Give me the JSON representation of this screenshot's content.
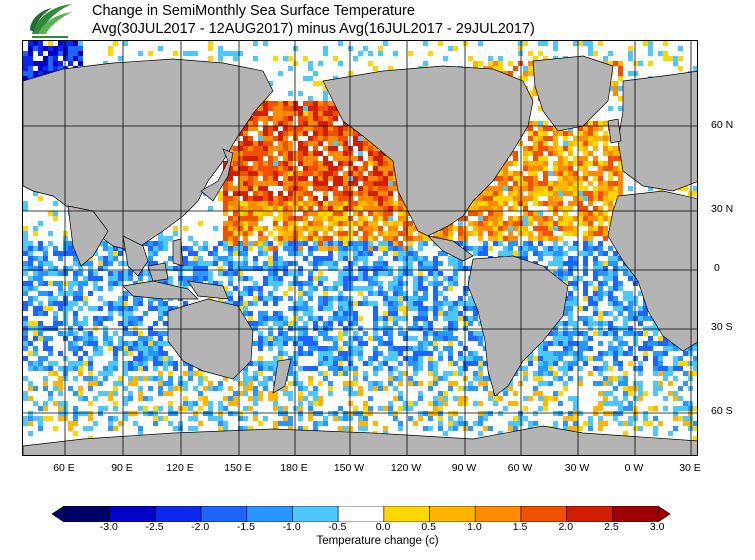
{
  "header": {
    "title_line1": "Change in SemiMonthly Sea Surface Temperature",
    "title_line2": "Avg(30JUL2017 - 12AUG2017) minus Avg(16JUL2017 - 29JUL2017)"
  },
  "map": {
    "lat_labels": [
      "60 N",
      "30 N",
      "0",
      "30 S",
      "60 S"
    ],
    "lon_labels": [
      "60 E",
      "90 E",
      "120 E",
      "150 E",
      "180 E",
      "150 W",
      "120 W",
      "90 W",
      "60 W",
      "30 W",
      "0 W",
      "30 E"
    ],
    "land_color": "#b4b4b4",
    "ice_color": "#dcdcdc"
  },
  "legend": {
    "title": "Temperature change  (c)",
    "ticks": [
      "-3.0",
      "-2.5",
      "-2.0",
      "-1.5",
      "-1.0",
      "-0.5",
      "0.0",
      "0.5",
      "1.0",
      "1.5",
      "2.0",
      "2.5",
      "3.0"
    ],
    "colors": [
      "#000066",
      "#0000c8",
      "#0a28f0",
      "#1e64ff",
      "#2896ff",
      "#4cc8ff",
      "#ffffff",
      "#ffd700",
      "#ffb400",
      "#ff8c00",
      "#f05000",
      "#d21e00",
      "#a00000"
    ]
  }
}
